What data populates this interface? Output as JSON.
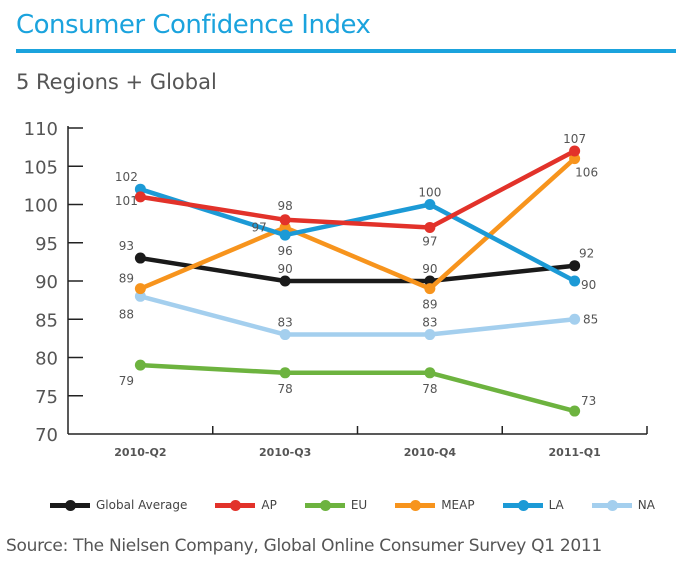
{
  "header": {
    "title": "Consumer Confidence Index",
    "subtitle": "5 Regions + Global"
  },
  "footer": {
    "source": "Source: The Nielsen Company, Global Online Consumer Survey Q1 2011"
  },
  "chart_data": {
    "type": "line",
    "title": "Consumer Confidence Index",
    "subtitle": "5 Regions + Global",
    "xlabel": "",
    "ylabel": "",
    "categories": [
      "2010-Q2",
      "2010-Q3",
      "2010-Q4",
      "2011-Q1"
    ],
    "ylim": [
      70,
      110
    ],
    "yticks": [
      70,
      75,
      80,
      85,
      90,
      95,
      100,
      105,
      110
    ],
    "grid": false,
    "legend_position": "bottom",
    "series": [
      {
        "name": "Global Average",
        "color": "#1a1a1a",
        "values": [
          93,
          90,
          90,
          92
        ]
      },
      {
        "name": "AP",
        "color": "#e2322a",
        "values": [
          101,
          98,
          97,
          107
        ]
      },
      {
        "name": "EU",
        "color": "#6db33f",
        "values": [
          79,
          78,
          78,
          73
        ]
      },
      {
        "name": "MEAP",
        "color": "#f7941d",
        "values": [
          89,
          97,
          89,
          106
        ]
      },
      {
        "name": "LA",
        "color": "#1c9ad6",
        "values": [
          102,
          96,
          100,
          90
        ]
      },
      {
        "name": "NA",
        "color": "#a4cfee",
        "values": [
          88,
          83,
          83,
          85
        ]
      }
    ]
  }
}
